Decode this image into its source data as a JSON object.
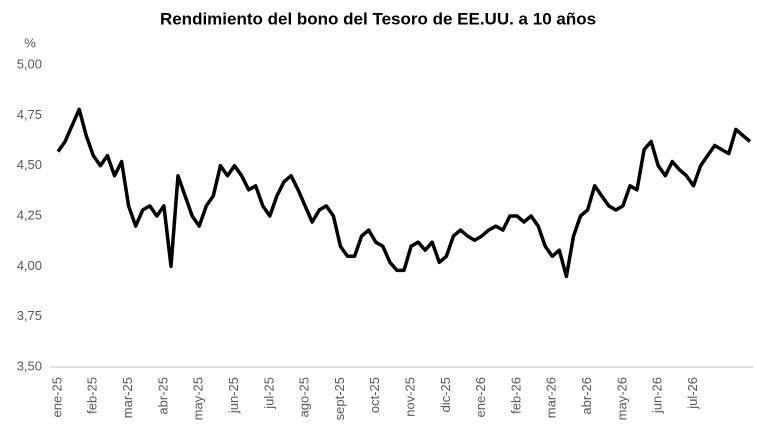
{
  "chart_data": {
    "type": "line",
    "title": "Rendimiento del bono del Tesoro de EE.UU. a 10 años",
    "y_label": "%",
    "categories": [
      "ene-25",
      null,
      null,
      null,
      null,
      "feb-25",
      null,
      null,
      null,
      null,
      "mar-25",
      null,
      null,
      null,
      null,
      "abr-25",
      null,
      null,
      null,
      null,
      "may-25",
      null,
      null,
      null,
      null,
      "jun-25",
      null,
      null,
      null,
      null,
      "jul-25",
      null,
      null,
      null,
      null,
      "ago-25",
      null,
      null,
      null,
      null,
      "sept-25",
      null,
      null,
      null,
      null,
      "oct-25",
      null,
      null,
      null,
      null,
      "nov-25",
      null,
      null,
      null,
      null,
      "dic-25",
      null,
      null,
      null,
      null,
      "ene-26",
      null,
      null,
      null,
      null,
      "feb-26",
      null,
      null,
      null,
      null,
      "mar-26",
      null,
      null,
      null,
      null,
      "abr-26",
      null,
      null,
      null,
      null,
      "may-26",
      null,
      null,
      null,
      null,
      "jun-26",
      null,
      null,
      null,
      null,
      "jul-26",
      null,
      null,
      null,
      null,
      null,
      null,
      null,
      null
    ],
    "values": [
      4.57,
      4.62,
      4.7,
      4.78,
      4.65,
      4.55,
      4.5,
      4.55,
      4.45,
      4.52,
      4.3,
      4.2,
      4.28,
      4.3,
      4.25,
      4.3,
      4.0,
      4.45,
      4.35,
      4.25,
      4.2,
      4.3,
      4.35,
      4.5,
      4.45,
      4.5,
      4.45,
      4.38,
      4.4,
      4.3,
      4.25,
      4.35,
      4.42,
      4.45,
      4.38,
      4.3,
      4.22,
      4.28,
      4.3,
      4.25,
      4.1,
      4.05,
      4.05,
      4.15,
      4.18,
      4.12,
      4.1,
      4.02,
      3.98,
      3.98,
      4.1,
      4.12,
      4.08,
      4.12,
      4.02,
      4.05,
      4.15,
      4.18,
      4.15,
      4.13,
      4.15,
      4.18,
      4.2,
      4.18,
      4.25,
      4.25,
      4.22,
      4.25,
      4.2,
      4.1,
      4.05,
      4.08,
      3.95,
      4.15,
      4.25,
      4.28,
      4.4,
      4.35,
      4.3,
      4.28,
      4.3,
      4.4,
      4.38,
      4.58,
      4.62,
      4.5,
      4.45,
      4.52,
      4.48,
      4.45,
      4.4,
      4.5,
      4.55,
      4.6,
      4.58,
      4.56,
      4.68,
      4.65,
      4.62
    ],
    "color": "#000000",
    "ylim": [
      3.5,
      5.0
    ],
    "yticks": [
      {
        "value": 3.5,
        "label": "3,50"
      },
      {
        "value": 3.75,
        "label": "3,75"
      },
      {
        "value": 4.0,
        "label": "4,00"
      },
      {
        "value": 4.25,
        "label": "4,25"
      },
      {
        "value": 4.5,
        "label": "4,50"
      },
      {
        "value": 4.75,
        "label": "4,75"
      },
      {
        "value": 5.0,
        "label": "5,00"
      }
    ],
    "grid": false
  }
}
